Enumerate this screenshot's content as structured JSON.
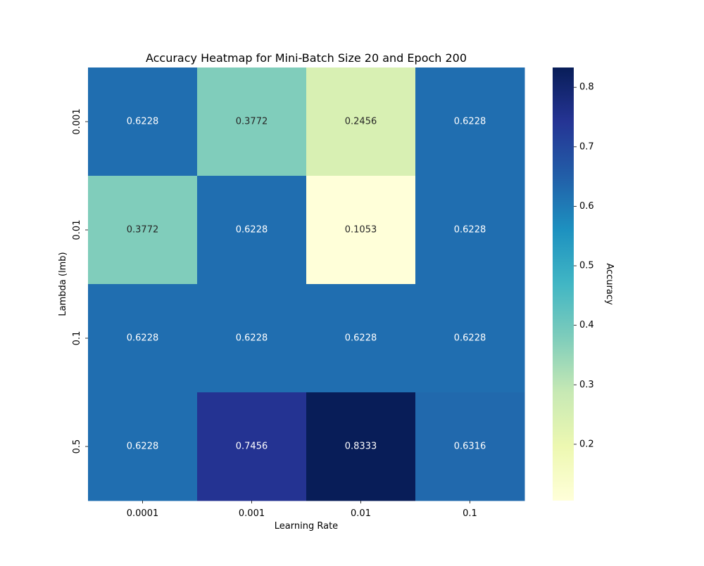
{
  "chart_data": {
    "type": "heatmap",
    "title": "Accuracy Heatmap for Mini-Batch Size 20 and Epoch 200",
    "xlabel": "Learning Rate",
    "ylabel": "Lambda (lmb)",
    "x_categories": [
      "0.0001",
      "0.001",
      "0.01",
      "0.1"
    ],
    "y_categories": [
      "0.001",
      "0.01",
      "0.1",
      "0.5"
    ],
    "values": [
      [
        0.6228,
        0.3772,
        0.2456,
        0.6228
      ],
      [
        0.3772,
        0.6228,
        0.1053,
        0.6228
      ],
      [
        0.6228,
        0.6228,
        0.6228,
        0.6228
      ],
      [
        0.6228,
        0.7456,
        0.8333,
        0.6316
      ]
    ],
    "annotations": [
      [
        "0.6228",
        "0.3772",
        "0.2456",
        "0.6228"
      ],
      [
        "0.3772",
        "0.6228",
        "0.1053",
        "0.6228"
      ],
      [
        "0.6228",
        "0.6228",
        "0.6228",
        "0.6228"
      ],
      [
        "0.6228",
        "0.7456",
        "0.8333",
        "0.6316"
      ]
    ],
    "colorbar": {
      "label": "Accuracy",
      "range": [
        0.1053,
        0.8333
      ],
      "ticks": [
        "0.2",
        "0.3",
        "0.4",
        "0.5",
        "0.6",
        "0.7",
        "0.8"
      ]
    },
    "colormap": "YlGnBu",
    "colormap_stops": [
      "#ffffd9",
      "#edf8b1",
      "#c7e9b4",
      "#7fcdbb",
      "#41b6c4",
      "#1d91c0",
      "#225ea8",
      "#253494",
      "#081d58"
    ]
  }
}
